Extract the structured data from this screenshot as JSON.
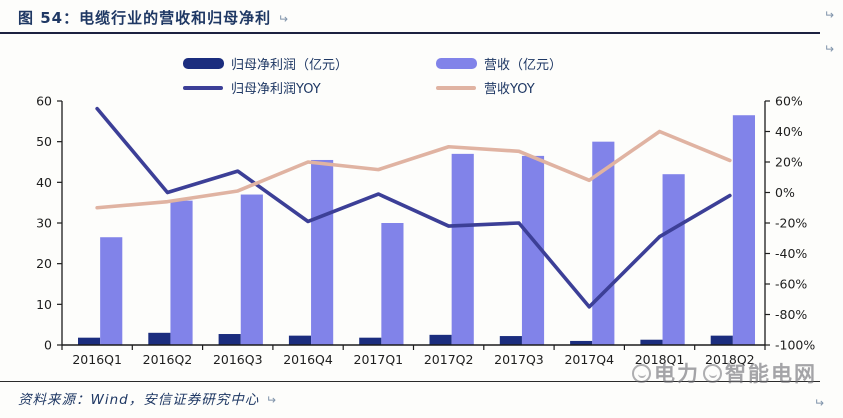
{
  "header": {
    "figure_title": "图 54：电缆行业的营收和归母净利",
    "return_mark": "↵"
  },
  "chart_data": {
    "type": "bar+line combo, dual axis",
    "categories": [
      "2016Q1",
      "2016Q2",
      "2016Q3",
      "2016Q4",
      "2017Q1",
      "2017Q2",
      "2017Q3",
      "2017Q4",
      "2018Q1",
      "2018Q2"
    ],
    "series": [
      {
        "name": "归母净利润（亿元）",
        "type": "bar",
        "axis": "left",
        "color": "#1b2d7e",
        "values": [
          1.8,
          3.0,
          2.7,
          2.3,
          1.8,
          2.5,
          2.2,
          1.0,
          1.3,
          2.3
        ]
      },
      {
        "name": "营收（亿元）",
        "type": "bar",
        "axis": "left",
        "color": "#8183e9",
        "values": [
          26.5,
          35.5,
          37.0,
          45.5,
          30.0,
          47.0,
          46.5,
          50.0,
          42.0,
          56.5
        ]
      },
      {
        "name": "归母净利润YOY",
        "type": "line",
        "axis": "right",
        "color": "#3c3f97",
        "values": [
          55,
          0,
          14,
          -19,
          -1,
          -22,
          -20,
          -75,
          -29,
          -2
        ]
      },
      {
        "name": "营收YOY",
        "type": "line",
        "axis": "right",
        "color": "#e0b3a2",
        "values": [
          -10,
          -6,
          1,
          20,
          15,
          30,
          27,
          8,
          40,
          21
        ]
      }
    ],
    "left_axis": {
      "min": 0,
      "max": 60,
      "step": 10,
      "ticks": [
        "60",
        "50",
        "40",
        "30",
        "20",
        "10",
        "0"
      ]
    },
    "right_axis": {
      "min": -100,
      "max": 60,
      "step": 20,
      "ticks": [
        "60%",
        "40%",
        "20%",
        "0%",
        "-20%",
        "-40%",
        "-60%",
        "-80%",
        "-100%"
      ]
    },
    "grid": false,
    "legend_position": "top"
  },
  "footer": {
    "source_text": "资料来源：Wind，安信证券研究中心"
  },
  "watermark": {
    "part1": "电力",
    "part2": "智能电网"
  }
}
